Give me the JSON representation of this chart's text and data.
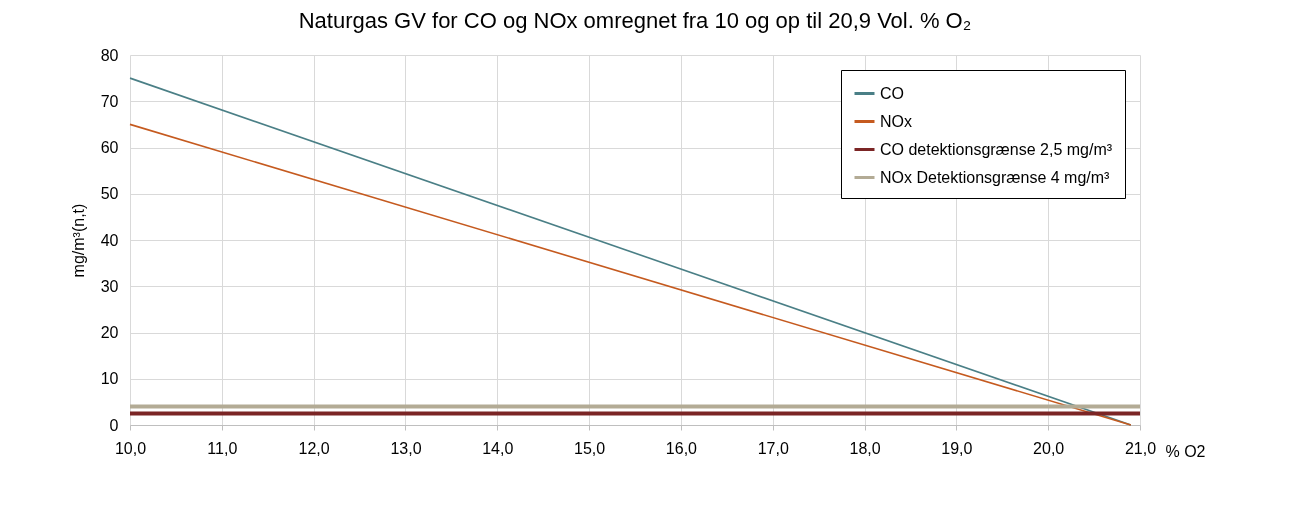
{
  "chart_data": {
    "type": "line",
    "title": "Naturgas GV for CO og NOx omregnet fra 10 og op til 20,9 Vol. % O₂",
    "xlabel": "% O2",
    "ylabel": "mg/m³(n,t)",
    "xlim": [
      10,
      21
    ],
    "xticks": [
      {
        "value": 10,
        "label": "10,0"
      },
      {
        "value": 11,
        "label": "11,0"
      },
      {
        "value": 12,
        "label": "12,0"
      },
      {
        "value": 13,
        "label": "13,0"
      },
      {
        "value": 14,
        "label": "14,0"
      },
      {
        "value": 15,
        "label": "15,0"
      },
      {
        "value": 16,
        "label": "16,0"
      },
      {
        "value": 17,
        "label": "17,0"
      },
      {
        "value": 18,
        "label": "18,0"
      },
      {
        "value": 19,
        "label": "19,0"
      },
      {
        "value": 20,
        "label": "20,0"
      },
      {
        "value": 21,
        "label": "21,0"
      }
    ],
    "ylim": [
      0,
      80
    ],
    "yticks": [
      0,
      10,
      20,
      30,
      40,
      50,
      60,
      70,
      80
    ],
    "grid": true,
    "legend": "top right",
    "series": [
      {
        "name": "CO",
        "color": "#4a7f86",
        "x": [
          10,
          20.9
        ],
        "values": [
          75,
          0
        ]
      },
      {
        "name": "NOx",
        "color": "#c55a1f",
        "x": [
          10,
          20.9
        ],
        "values": [
          65,
          0
        ]
      },
      {
        "name": "CO detektionsgrænse 2,5 mg/m³",
        "color": "#7b2525",
        "x": [
          10,
          21
        ],
        "values": [
          2.5,
          2.5
        ]
      },
      {
        "name": "NOx Detektionsgrænse 4 mg/m³",
        "color": "#b3ab95",
        "x": [
          10,
          21
        ],
        "values": [
          4,
          4
        ]
      }
    ]
  }
}
